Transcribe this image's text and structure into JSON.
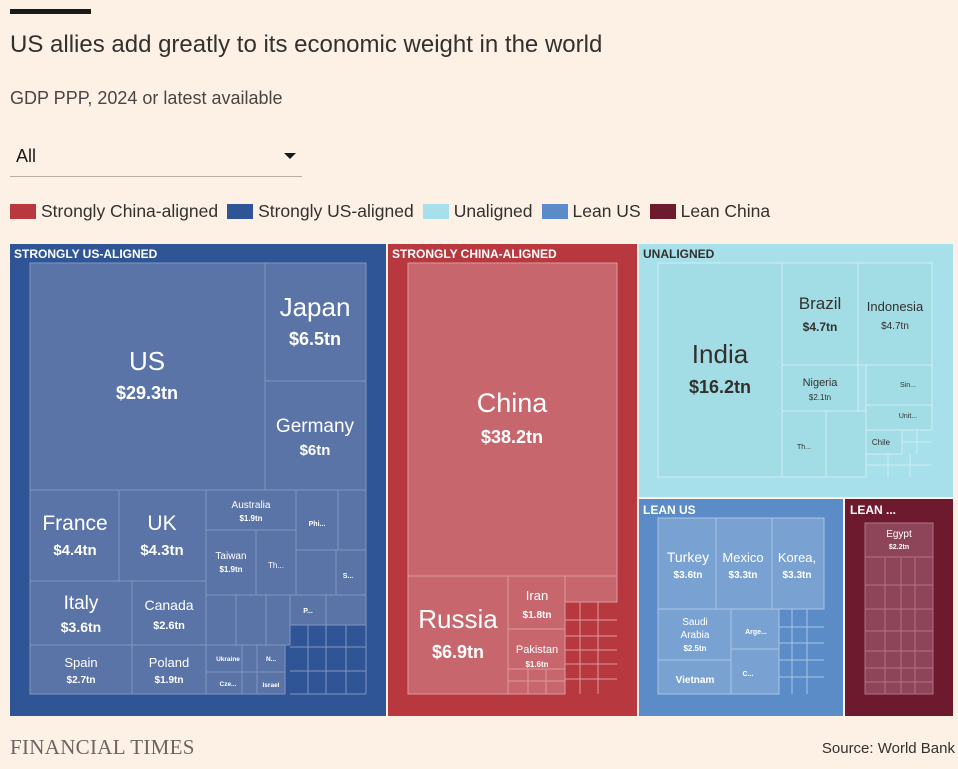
{
  "header": {
    "title": "US allies add greatly to its economic weight in the world",
    "subtitle": "GDP PPP, 2024 or latest available"
  },
  "filter": {
    "selected": "All"
  },
  "legend": [
    {
      "label": "Strongly China-aligned",
      "color": "#b8383f"
    },
    {
      "label": "Strongly US-aligned",
      "color": "#2f5597"
    },
    {
      "label": "Unaligned",
      "color": "#a7e0ea"
    },
    {
      "label": "Lean US",
      "color": "#5b8cc8"
    },
    {
      "label": "Lean China",
      "color": "#6e1a2e"
    }
  ],
  "footer": {
    "brand": "FINANCIAL TIMES",
    "source": "Source: World Bank"
  },
  "chart_data": {
    "type": "treemap",
    "title": "US allies add greatly to its economic weight in the world",
    "subtitle": "GDP PPP, 2024 or latest available",
    "unit": "$tn",
    "groups": [
      {
        "id": "strong-us",
        "name": "STRONGLY US-ALIGNED",
        "color": "#2f5597",
        "items": [
          {
            "name": "US",
            "value": 29.3,
            "label": "$29.3tn"
          },
          {
            "name": "Japan",
            "value": 6.5,
            "label": "$6.5tn"
          },
          {
            "name": "Germany",
            "value": 6.0,
            "label": "$6tn"
          },
          {
            "name": "France",
            "value": 4.4,
            "label": "$4.4tn"
          },
          {
            "name": "UK",
            "value": 4.3,
            "label": "$4.3tn"
          },
          {
            "name": "Italy",
            "value": 3.6,
            "label": "$3.6tn"
          },
          {
            "name": "Canada",
            "value": 2.6,
            "label": "$2.6tn"
          },
          {
            "name": "Spain",
            "value": 2.7,
            "label": "$2.7tn"
          },
          {
            "name": "Poland",
            "value": 1.9,
            "label": "$1.9tn"
          },
          {
            "name": "Australia",
            "value": 1.9,
            "label": "$1.9tn"
          },
          {
            "name": "Taiwan",
            "value": 1.9,
            "label": "$1.9tn"
          },
          {
            "name": "Phi...",
            "value": null,
            "label": ""
          },
          {
            "name": "Th...",
            "value": null,
            "label": ""
          },
          {
            "name": "S...",
            "value": null,
            "label": ""
          },
          {
            "name": "P...",
            "value": null,
            "label": ""
          },
          {
            "name": "Ukraine",
            "value": null,
            "label": ""
          },
          {
            "name": "N...",
            "value": null,
            "label": ""
          },
          {
            "name": "Cze...",
            "value": null,
            "label": ""
          },
          {
            "name": "Israel",
            "value": null,
            "label": ""
          }
        ]
      },
      {
        "id": "strong-china",
        "name": "STRONGLY CHINA-ALIGNED",
        "color": "#b8383f",
        "items": [
          {
            "name": "China",
            "value": 38.2,
            "label": "$38.2tn"
          },
          {
            "name": "Russia",
            "value": 6.9,
            "label": "$6.9tn"
          },
          {
            "name": "Iran",
            "value": 1.8,
            "label": "$1.8tn"
          },
          {
            "name": "Pakistan",
            "value": 1.6,
            "label": "$1.6tn"
          }
        ]
      },
      {
        "id": "unaligned",
        "name": "UNALIGNED",
        "color": "#a7e0ea",
        "items": [
          {
            "name": "India",
            "value": 16.2,
            "label": "$16.2tn"
          },
          {
            "name": "Brazil",
            "value": 4.7,
            "label": "$4.7tn"
          },
          {
            "name": "Indonesia",
            "value": 4.7,
            "label": "$4.7tn"
          },
          {
            "name": "Nigeria",
            "value": 2.1,
            "label": "$2.1tn"
          },
          {
            "name": "Sin...",
            "value": null,
            "label": ""
          },
          {
            "name": "Unit...",
            "value": null,
            "label": ""
          },
          {
            "name": "Th...",
            "value": null,
            "label": ""
          },
          {
            "name": "Chile",
            "value": null,
            "label": ""
          }
        ]
      },
      {
        "id": "lean-us",
        "name": "LEAN US",
        "color": "#5b8cc8",
        "items": [
          {
            "name": "Turkey",
            "value": 3.6,
            "label": "$3.6tn"
          },
          {
            "name": "Mexico",
            "value": 3.3,
            "label": "$3.3tn"
          },
          {
            "name": "Korea,",
            "value": 3.3,
            "label": "$3.3tn"
          },
          {
            "name": "Saudi Arabia",
            "value": 2.5,
            "label": "$2.5tn"
          },
          {
            "name": "Arge...",
            "value": null,
            "label": ""
          },
          {
            "name": "C...",
            "value": null,
            "label": ""
          },
          {
            "name": "Vietnam",
            "value": null,
            "label": ""
          }
        ]
      },
      {
        "id": "lean-china",
        "name": "LEAN ...",
        "color": "#6e1a2e",
        "items": [
          {
            "name": "Egypt",
            "value": 2.2,
            "label": "$2.2tn"
          }
        ]
      }
    ]
  }
}
